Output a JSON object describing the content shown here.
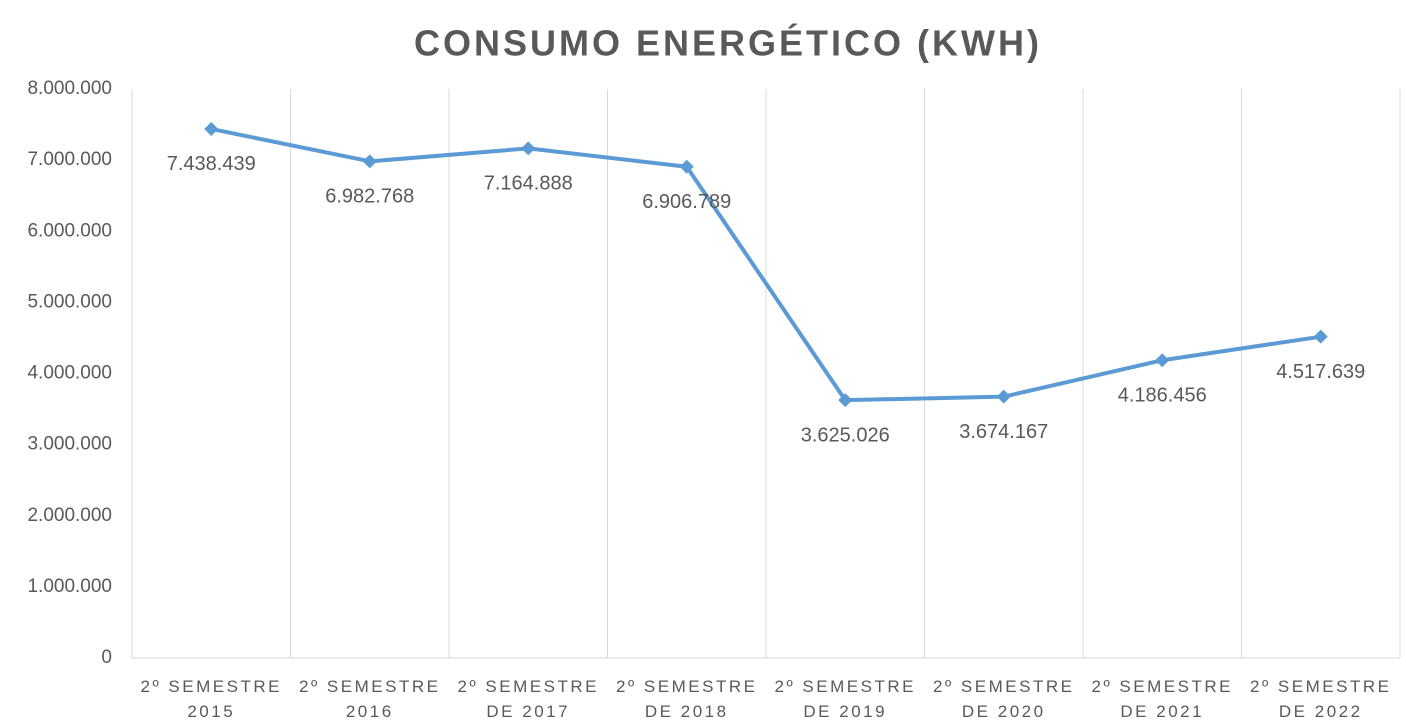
{
  "chart_data": {
    "type": "line",
    "title": "CONSUMO ENERGÉTICO (KWH)",
    "categories": [
      "2º SEMESTRE 2015",
      "2º SEMESTRE 2016",
      "2º SEMESTRE DE 2017",
      "2º SEMESTRE DE 2018",
      "2º SEMESTRE DE 2019",
      "2º SEMESTRE DE 2020",
      "2º SEMESTRE DE 2021",
      "2º SEMESTRE DE 2022"
    ],
    "series": [
      {
        "name": "Consumo",
        "color": "#5b9bd5",
        "values": [
          7438439,
          6982768,
          7164888,
          6906789,
          3625026,
          3674167,
          4186456,
          4517639
        ],
        "value_labels": [
          "7.438.439",
          "6.982.768",
          "7.164.888",
          "6.906.789",
          "3.625.026",
          "3.674.167",
          "4.186.456",
          "4.517.639"
        ]
      }
    ],
    "ylim": [
      0,
      8000000
    ],
    "yticks": [
      0,
      {
        "value": 1000000,
        "label": "1.000.000"
      },
      {
        "value": 2000000,
        "label": "2.000.000"
      },
      {
        "value": 3000000,
        "label": "3.000.000"
      },
      {
        "value": 4000000,
        "label": "4.000.000"
      },
      {
        "value": 5000000,
        "label": "5.000.000"
      },
      {
        "value": 6000000,
        "label": "6.000.000"
      },
      {
        "value": 7000000,
        "label": "7.000.000"
      },
      {
        "value": 8000000,
        "label": "8.000.000"
      }
    ],
    "grid": true
  }
}
